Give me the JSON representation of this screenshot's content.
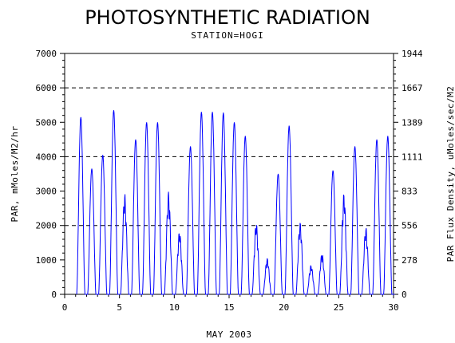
{
  "chart_data": {
    "type": "line",
    "title": "PHOTOSYNTHETIC RADIATION",
    "subtitle": "STATION=HOGI",
    "xlabel": "MAY 2003",
    "ylabel": "PAR, mMoles/M2/hr",
    "y2label": "PAR Flux Density, uMoles/sec/M2",
    "xlim": [
      0,
      30
    ],
    "ylim": [
      0,
      7000
    ],
    "x_ticks": [
      "0",
      "5",
      "10",
      "15",
      "20",
      "25",
      "30"
    ],
    "y_ticks": [
      "0",
      "1000",
      "2000",
      "3000",
      "4000",
      "5000",
      "6000",
      "7000"
    ],
    "y2_ticks": [
      "0",
      "278",
      "556",
      "833",
      "1111",
      "1389",
      "1667",
      "1944"
    ],
    "grid": "dashed horizontal lines at 2000, 4000, 6000",
    "line_color": "#0000ff",
    "series": [
      {
        "daily_peaks": [
          {
            "day": 1,
            "peak": 5150
          },
          {
            "day": 2,
            "peak": 3650
          },
          {
            "day": 3,
            "peak": 4050
          },
          {
            "day": 4,
            "peak": 5350
          },
          {
            "day": 5,
            "peak": 2950
          },
          {
            "day": 6,
            "peak": 4500
          },
          {
            "day": 7,
            "peak": 5000
          },
          {
            "day": 8,
            "peak": 5000
          },
          {
            "day": 9,
            "peak": 3000
          },
          {
            "day": 10,
            "peak": 1850
          },
          {
            "day": 11,
            "peak": 4300
          },
          {
            "day": 12,
            "peak": 5300
          },
          {
            "day": 13,
            "peak": 5300
          },
          {
            "day": 14,
            "peak": 5280
          },
          {
            "day": 15,
            "peak": 5000
          },
          {
            "day": 16,
            "peak": 4600
          },
          {
            "day": 17,
            "peak": 2100
          },
          {
            "day": 18,
            "peak": 1050
          },
          {
            "day": 19,
            "peak": 3500
          },
          {
            "day": 20,
            "peak": 4900
          },
          {
            "day": 21,
            "peak": 2100
          },
          {
            "day": 22,
            "peak": 850
          },
          {
            "day": 23,
            "peak": 1200
          },
          {
            "day": 24,
            "peak": 3600
          },
          {
            "day": 25,
            "peak": 2950
          },
          {
            "day": 26,
            "peak": 4300
          },
          {
            "day": 27,
            "peak": 1950
          },
          {
            "day": 28,
            "peak": 4500
          },
          {
            "day": 29,
            "peak": 4600
          }
        ]
      }
    ]
  }
}
